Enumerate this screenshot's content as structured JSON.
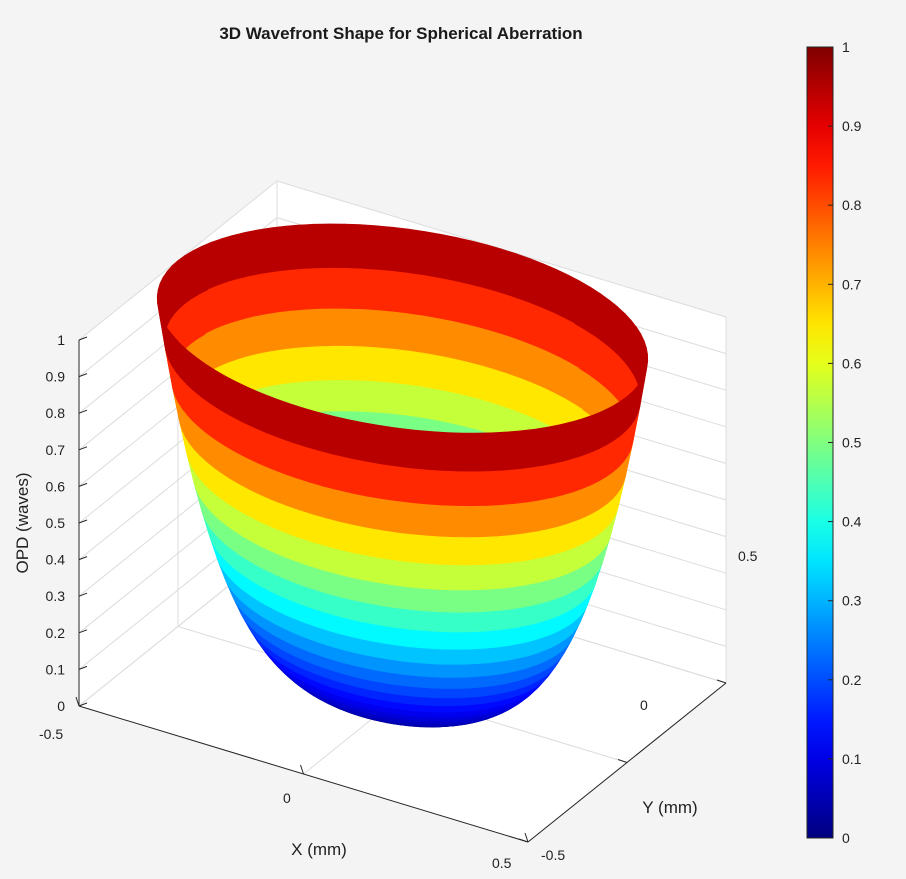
{
  "chart_data": {
    "type": "surface3d",
    "title": "3D Wavefront Shape for Spherical Aberration",
    "xlabel": "X (mm)",
    "ylabel": "Y (mm)",
    "zlabel": "OPD (waves)",
    "xlim": [
      -0.5,
      0.5
    ],
    "ylim": [
      -0.5,
      0.5
    ],
    "zlim": [
      0,
      1
    ],
    "x_ticks": [
      "-0.5",
      "0",
      "0.5"
    ],
    "y_ticks": [
      "-0.5",
      "0",
      "0.5"
    ],
    "z_ticks": [
      "0",
      "0.1",
      "0.2",
      "0.3",
      "0.4",
      "0.5",
      "0.6",
      "0.7",
      "0.8",
      "0.9",
      "1"
    ],
    "surface": "z = (r / 0.5)^4 over circular aperture r <= 0.5",
    "colormap": "jet",
    "colorbar": {
      "range": [
        0,
        1
      ],
      "ticks": [
        "0",
        "0.1",
        "0.2",
        "0.3",
        "0.4",
        "0.5",
        "0.6",
        "0.7",
        "0.8",
        "0.9",
        "1"
      ]
    },
    "grid": true,
    "colors": {
      "background": "#f4f4f4",
      "axes_background": "#ffffff"
    }
  }
}
